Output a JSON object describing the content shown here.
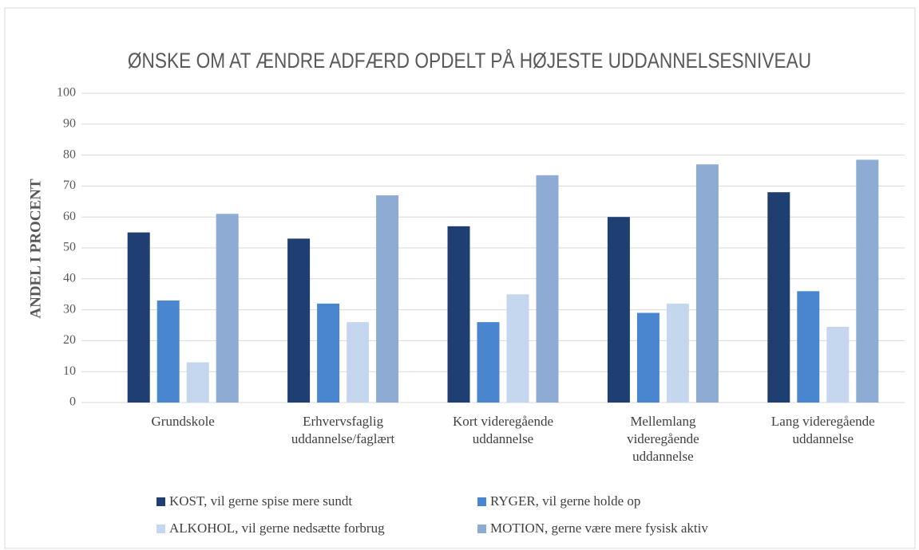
{
  "chart_data": {
    "type": "bar",
    "title": "ØNSKE OM AT ÆNDRE ADFÆRD OPDELT PÅ HØJESTE UDDANNELSESNIVEAU",
    "y_label": "ANDEL I PROCENT",
    "categories": [
      [
        "Grundskole"
      ],
      [
        "Erhvervsfaglig",
        "uddannelse/faglært"
      ],
      [
        "Kort videregående",
        "uddannelse"
      ],
      [
        "Mellemlang",
        "videregående",
        "uddannelse"
      ],
      [
        "Lang videregående",
        "uddannelse"
      ]
    ],
    "series": [
      {
        "name": "KOST, vil gerne spise mere sundt",
        "color": "#1f3f73",
        "values": [
          55,
          53,
          57,
          60,
          68
        ]
      },
      {
        "name": "RYGER, vil gerne holde op",
        "color": "#4a86d0",
        "values": [
          33,
          32,
          26,
          29,
          36
        ]
      },
      {
        "name": "ALKOHOL, vil gerne nedsætte forbrug",
        "color": "#c5d7ee",
        "values": [
          13,
          26,
          35,
          32,
          24.5
        ]
      },
      {
        "name": "MOTION, gerne være mere fysisk aktiv",
        "color": "#8eabd3",
        "values": [
          61,
          67,
          73.5,
          77,
          78.5
        ]
      }
    ],
    "ylim": [
      0,
      100
    ],
    "yticks": [
      0,
      10,
      20,
      30,
      40,
      50,
      60,
      70,
      80,
      90,
      100
    ],
    "grid": true,
    "legend": "bottom"
  }
}
